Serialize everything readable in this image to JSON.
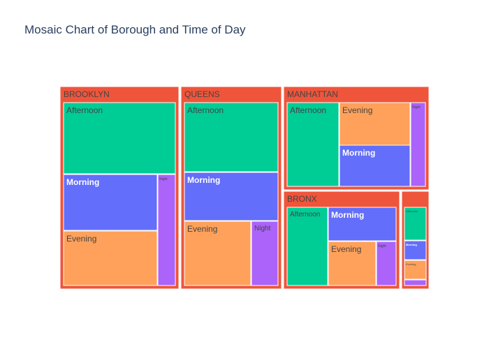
{
  "chart_data": {
    "type": "treemap",
    "title": "Mosaic Chart of Borough and Time of Day",
    "colors": {
      "parent": "#EF553B",
      "Afternoon": "#00CC96",
      "Morning": "#636EFA",
      "Evening": "#FFA15A",
      "Night": "#AB63FA"
    },
    "boroughs": [
      {
        "name": "BROOKLYN",
        "children": [
          {
            "label": "Afternoon",
            "value": 30
          },
          {
            "label": "Morning",
            "value": 19
          },
          {
            "label": "Evening",
            "value": 19
          },
          {
            "label": "Night",
            "value": 7
          }
        ]
      },
      {
        "name": "QUEENS",
        "children": [
          {
            "label": "Afternoon",
            "value": 24
          },
          {
            "label": "Morning",
            "value": 16
          },
          {
            "label": "Evening",
            "value": 16
          },
          {
            "label": "Night",
            "value": 6
          }
        ]
      },
      {
        "name": "MANHATTAN",
        "children": [
          {
            "label": "Afternoon",
            "value": 14
          },
          {
            "label": "Evening",
            "value": 11
          },
          {
            "label": "Morning",
            "value": 11
          },
          {
            "label": "Night",
            "value": 3
          }
        ]
      },
      {
        "name": "BRONX",
        "children": [
          {
            "label": "Afternoon",
            "value": 13
          },
          {
            "label": "Morning",
            "value": 10
          },
          {
            "label": "Evening",
            "value": 14
          },
          {
            "label": "Night",
            "value": 6
          }
        ]
      },
      {
        "name": "",
        "children": [
          {
            "label": "Afternoon",
            "value": 4
          },
          {
            "label": "Morning",
            "value": 2
          },
          {
            "label": "Evening",
            "value": 2
          },
          {
            "label": "",
            "value": 0.5
          }
        ]
      }
    ]
  }
}
